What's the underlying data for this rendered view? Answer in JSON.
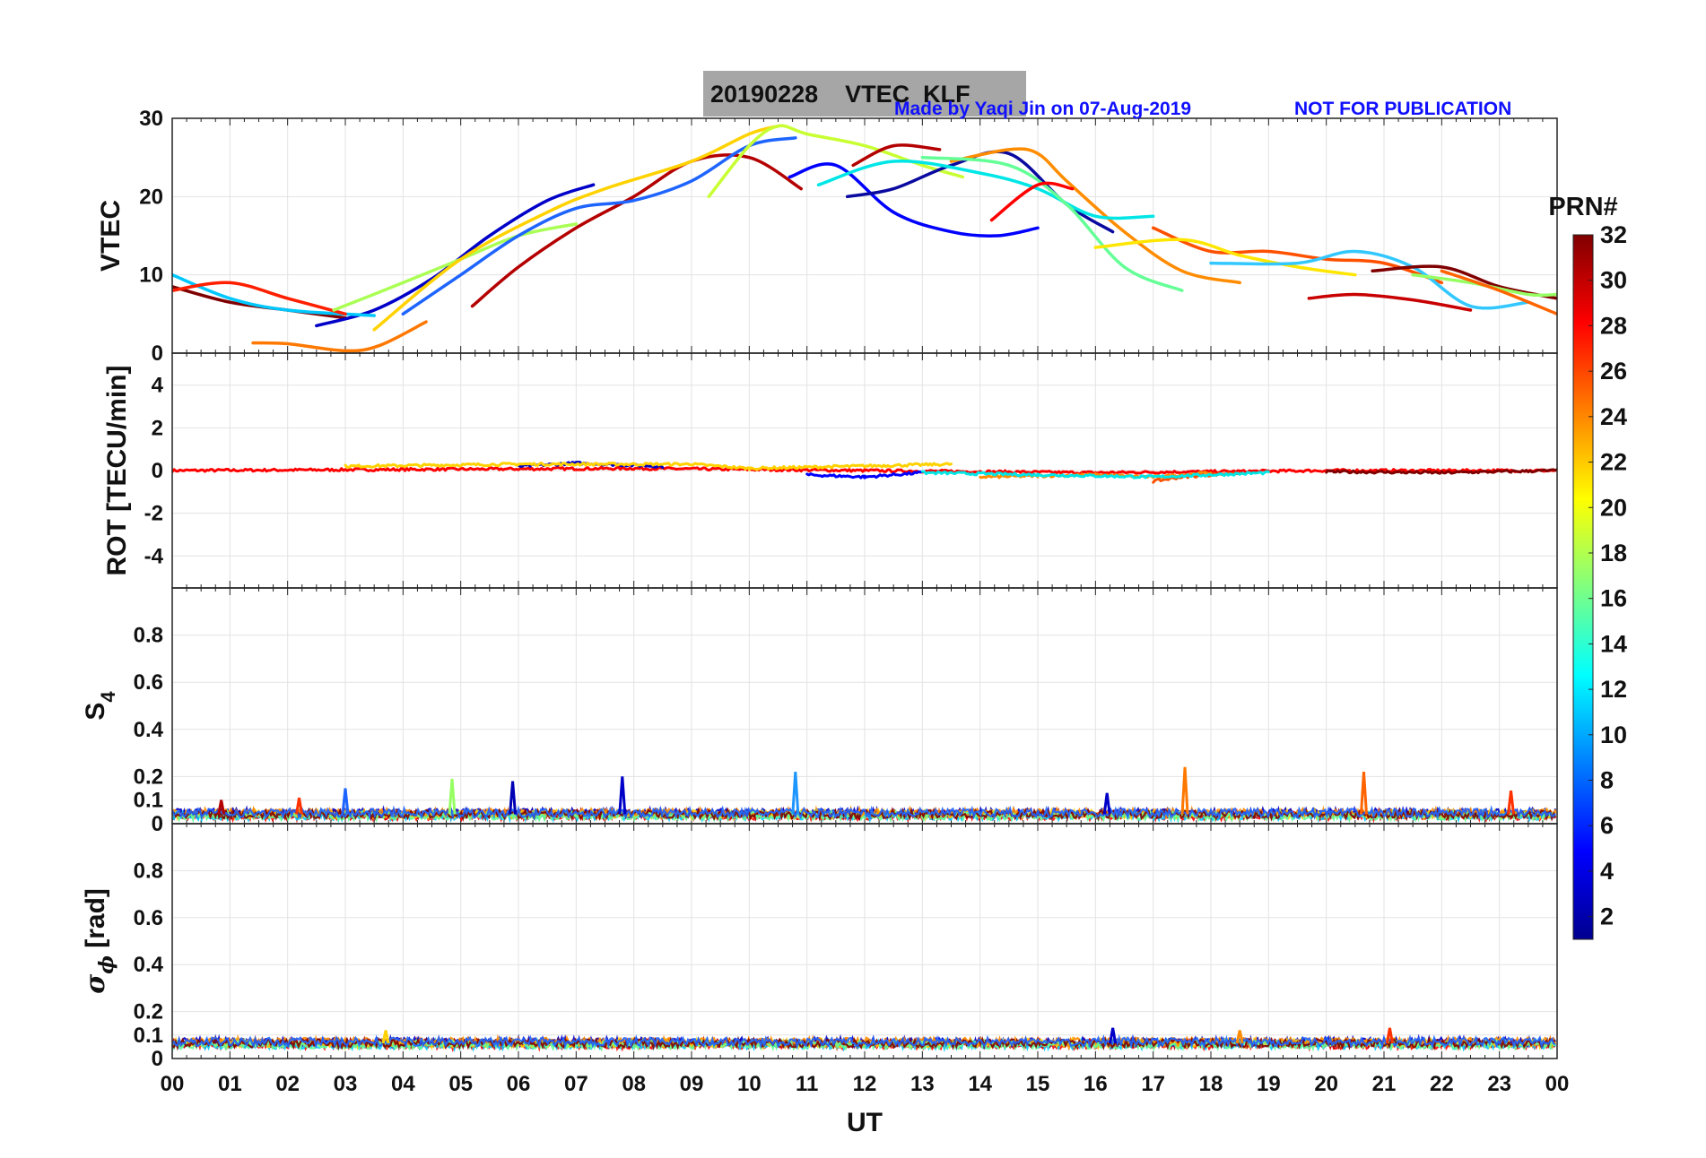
{
  "header": {
    "title": "20190228    VTEC  KLF",
    "credit": "Made by Yaqi Jin on 07-Aug-2019",
    "notice": "NOT FOR PUBLICATION"
  },
  "colors": {
    "title_box": "#a6a6a6",
    "credit_text": "#1010ff",
    "grid": "#e3e3e3",
    "axis": "#222222"
  },
  "chart_data": [
    {
      "type": "line",
      "panel": "vtec",
      "ylabel": "VTEC",
      "ylim": [
        0,
        30
      ],
      "yticks": [
        "0",
        "10",
        "20",
        "30"
      ],
      "x_unit": "UT hours",
      "series": [
        {
          "color": "#7f0000",
          "x": [
            0,
            1,
            2,
            3
          ],
          "y": [
            8.5,
            6.5,
            5.5,
            4.5
          ]
        },
        {
          "color": "#0000c8",
          "x": [
            2.5,
            3.5,
            4.5,
            5.5,
            6.5,
            7.3
          ],
          "y": [
            3.5,
            5.5,
            9.5,
            15,
            19.5,
            21.5
          ]
        },
        {
          "color": "#00c8ff",
          "x": [
            0,
            1,
            2,
            3.5
          ],
          "y": [
            10,
            7,
            5.5,
            4.8
          ]
        },
        {
          "color": "#ff1e00",
          "x": [
            0,
            1,
            2,
            3
          ],
          "y": [
            8,
            9,
            7,
            5
          ]
        },
        {
          "color": "#b40000",
          "x": [
            5.2,
            6,
            7,
            8,
            9,
            10,
            10.9
          ],
          "y": [
            6,
            11,
            16,
            20,
            24.5,
            25,
            21
          ]
        },
        {
          "color": "#ff7800",
          "x": [
            1.4,
            2,
            3,
            3.6,
            4.4
          ],
          "y": [
            1.3,
            1.2,
            0.3,
            1,
            4
          ]
        },
        {
          "color": "#aaff55",
          "x": [
            2.8,
            4,
            5,
            6,
            7
          ],
          "y": [
            5.5,
            9,
            12,
            15,
            16.5
          ]
        },
        {
          "color": "#1e64ff",
          "x": [
            4,
            5,
            6,
            7,
            8,
            9,
            10,
            10.8
          ],
          "y": [
            5,
            10,
            15,
            18.5,
            19.5,
            22,
            26.5,
            27.5
          ]
        },
        {
          "color": "#ffd200",
          "x": [
            3.5,
            5,
            6.5,
            7.5,
            9,
            10,
            10.5
          ],
          "y": [
            3,
            12,
            18,
            21,
            24.5,
            28,
            29
          ]
        },
        {
          "color": "#c8ff32",
          "x": [
            9.3,
            10,
            10.5,
            11,
            12,
            13,
            13.7
          ],
          "y": [
            20,
            26.5,
            29,
            28,
            26.5,
            24,
            22.5
          ]
        },
        {
          "color": "#0000ff",
          "x": [
            10.7,
            11.5,
            12.5,
            13.5,
            14.3,
            15
          ],
          "y": [
            22.5,
            24,
            18,
            15.5,
            15,
            16
          ]
        },
        {
          "color": "#0a0aa0",
          "x": [
            11.7,
            12.5,
            13.5,
            14.5,
            15.5,
            16.3
          ],
          "y": [
            20,
            21,
            24,
            25.5,
            19,
            15.5
          ]
        },
        {
          "color": "#b40000",
          "x": [
            11.8,
            12.5,
            13.3
          ],
          "y": [
            24,
            26.5,
            26
          ]
        },
        {
          "color": "#ff8c00",
          "x": [
            13.5,
            14.5,
            15,
            15.5,
            16.5,
            17.5,
            18.5
          ],
          "y": [
            24.5,
            26,
            25.5,
            22,
            15.5,
            10.5,
            9
          ]
        },
        {
          "color": "#00e6e6",
          "x": [
            11.2,
            12.5,
            14,
            15,
            16,
            17
          ],
          "y": [
            21.5,
            24.5,
            23,
            21,
            17.5,
            17.5
          ]
        },
        {
          "color": "#64ff96",
          "x": [
            13,
            14.5,
            15.5,
            16.5,
            17.5
          ],
          "y": [
            25,
            24,
            19,
            11,
            8
          ]
        },
        {
          "color": "#ff0000",
          "x": [
            14.2,
            15,
            15.6
          ],
          "y": [
            17,
            21.5,
            21
          ]
        },
        {
          "color": "#ff5000",
          "x": [
            17,
            18,
            19,
            20,
            21,
            22
          ],
          "y": [
            16,
            13,
            13,
            12,
            11.5,
            9
          ]
        },
        {
          "color": "#ffe600",
          "x": [
            16,
            17.5,
            18.5,
            19.5,
            20.5
          ],
          "y": [
            13.5,
            14.5,
            12.5,
            11,
            10
          ]
        },
        {
          "color": "#32c8ff",
          "x": [
            18,
            19.5,
            20.5,
            21.5,
            22.5,
            23.5
          ],
          "y": [
            11.5,
            11.5,
            13,
            11,
            6,
            6.5
          ]
        },
        {
          "color": "#c80000",
          "x": [
            19.7,
            20.5,
            21.5,
            22.5
          ],
          "y": [
            7,
            7.5,
            6.8,
            5.5
          ]
        },
        {
          "color": "#800000",
          "x": [
            20.8,
            22,
            23,
            24
          ],
          "y": [
            10.5,
            11,
            8.5,
            7
          ]
        },
        {
          "color": "#96ff64",
          "x": [
            21.5,
            22.5,
            23.5,
            24
          ],
          "y": [
            10,
            9,
            7.5,
            7.5
          ]
        },
        {
          "color": "#ff6400",
          "x": [
            22,
            23,
            24
          ],
          "y": [
            10.5,
            8,
            5
          ]
        }
      ]
    },
    {
      "type": "line",
      "panel": "rot",
      "ylabel": "ROT [TECU/min]",
      "ylim": [
        -5.5,
        5.5
      ],
      "yticks": [
        "-4",
        "-2",
        "0",
        "2",
        "4"
      ],
      "x_unit": "UT hours",
      "series": [
        {
          "color": "#ff0000",
          "x": [
            0,
            4,
            8,
            12,
            16,
            20,
            24
          ],
          "y": [
            0,
            0.05,
            0.1,
            0,
            -0.1,
            0,
            0
          ]
        },
        {
          "color": "#0000c8",
          "x": [
            6,
            7,
            8.5
          ],
          "y": [
            0.2,
            0.35,
            0.2
          ]
        },
        {
          "color": "#ffd200",
          "x": [
            3,
            6,
            9,
            10,
            13.5
          ],
          "y": [
            0.2,
            0.3,
            0.3,
            0.1,
            0.3
          ]
        },
        {
          "color": "#0000ff",
          "x": [
            11,
            12,
            13
          ],
          "y": [
            -0.2,
            -0.3,
            -0.1
          ]
        },
        {
          "color": "#ff8c00",
          "x": [
            14,
            15,
            16,
            17,
            18
          ],
          "y": [
            -0.3,
            -0.25,
            -0.2,
            -0.3,
            -0.1
          ]
        },
        {
          "color": "#ff5000",
          "x": [
            17,
            17.5,
            18.5
          ],
          "y": [
            -0.5,
            -0.3,
            -0.1
          ]
        },
        {
          "color": "#00e6e6",
          "x": [
            13,
            15,
            17,
            19
          ],
          "y": [
            -0.1,
            -0.2,
            -0.3,
            -0.1
          ]
        },
        {
          "color": "#7f0000",
          "x": [
            20,
            22,
            24
          ],
          "y": [
            -0.05,
            -0.1,
            0
          ]
        }
      ]
    },
    {
      "type": "line",
      "panel": "s4",
      "ylabel": "S4",
      "ylim": [
        0,
        1
      ],
      "yticks": [
        "0",
        "0.1",
        "0.2",
        "0.4",
        "0.6",
        "0.8"
      ],
      "x_unit": "UT hours",
      "baseline": 0.04,
      "spikes": [
        {
          "x": 0.85,
          "y": 0.1,
          "color": "#b40000"
        },
        {
          "x": 2.2,
          "y": 0.11,
          "color": "#ff3200"
        },
        {
          "x": 3.0,
          "y": 0.15,
          "color": "#1e64ff"
        },
        {
          "x": 4.85,
          "y": 0.19,
          "color": "#96ff64"
        },
        {
          "x": 5.9,
          "y": 0.18,
          "color": "#0000b4"
        },
        {
          "x": 7.8,
          "y": 0.2,
          "color": "#0000c8"
        },
        {
          "x": 10.8,
          "y": 0.22,
          "color": "#1e96ff"
        },
        {
          "x": 16.2,
          "y": 0.13,
          "color": "#0000c8"
        },
        {
          "x": 17.55,
          "y": 0.24,
          "color": "#ff7800"
        },
        {
          "x": 20.65,
          "y": 0.22,
          "color": "#ff6400"
        },
        {
          "x": 23.2,
          "y": 0.14,
          "color": "#ff3200"
        }
      ]
    },
    {
      "type": "line",
      "panel": "sigma_phi",
      "ylabel": "σ ϕ [rad]",
      "ylim": [
        0,
        1
      ],
      "yticks": [
        "0",
        "0.1",
        "0.2",
        "0.4",
        "0.6",
        "0.8"
      ],
      "xlabel": "UT",
      "xlim": [
        0,
        24
      ],
      "xticks": [
        "00",
        "01",
        "02",
        "03",
        "04",
        "05",
        "06",
        "07",
        "08",
        "09",
        "10",
        "11",
        "12",
        "13",
        "14",
        "15",
        "16",
        "17",
        "18",
        "19",
        "20",
        "21",
        "22",
        "23",
        "00"
      ],
      "baseline": 0.065,
      "spikes": [
        {
          "x": 16.3,
          "y": 0.13,
          "color": "#0000c8"
        },
        {
          "x": 21.1,
          "y": 0.13,
          "color": "#ff3200"
        },
        {
          "x": 18.5,
          "y": 0.12,
          "color": "#ff8c00"
        },
        {
          "x": 3.7,
          "y": 0.12,
          "color": "#ffd200"
        }
      ]
    },
    {
      "type": "colorbar",
      "label": "PRN#",
      "range": [
        1,
        32
      ],
      "ticks": [
        "2",
        "4",
        "6",
        "8",
        "10",
        "12",
        "14",
        "16",
        "18",
        "20",
        "22",
        "24",
        "26",
        "28",
        "30",
        "32"
      ],
      "colormap": "jet"
    }
  ]
}
